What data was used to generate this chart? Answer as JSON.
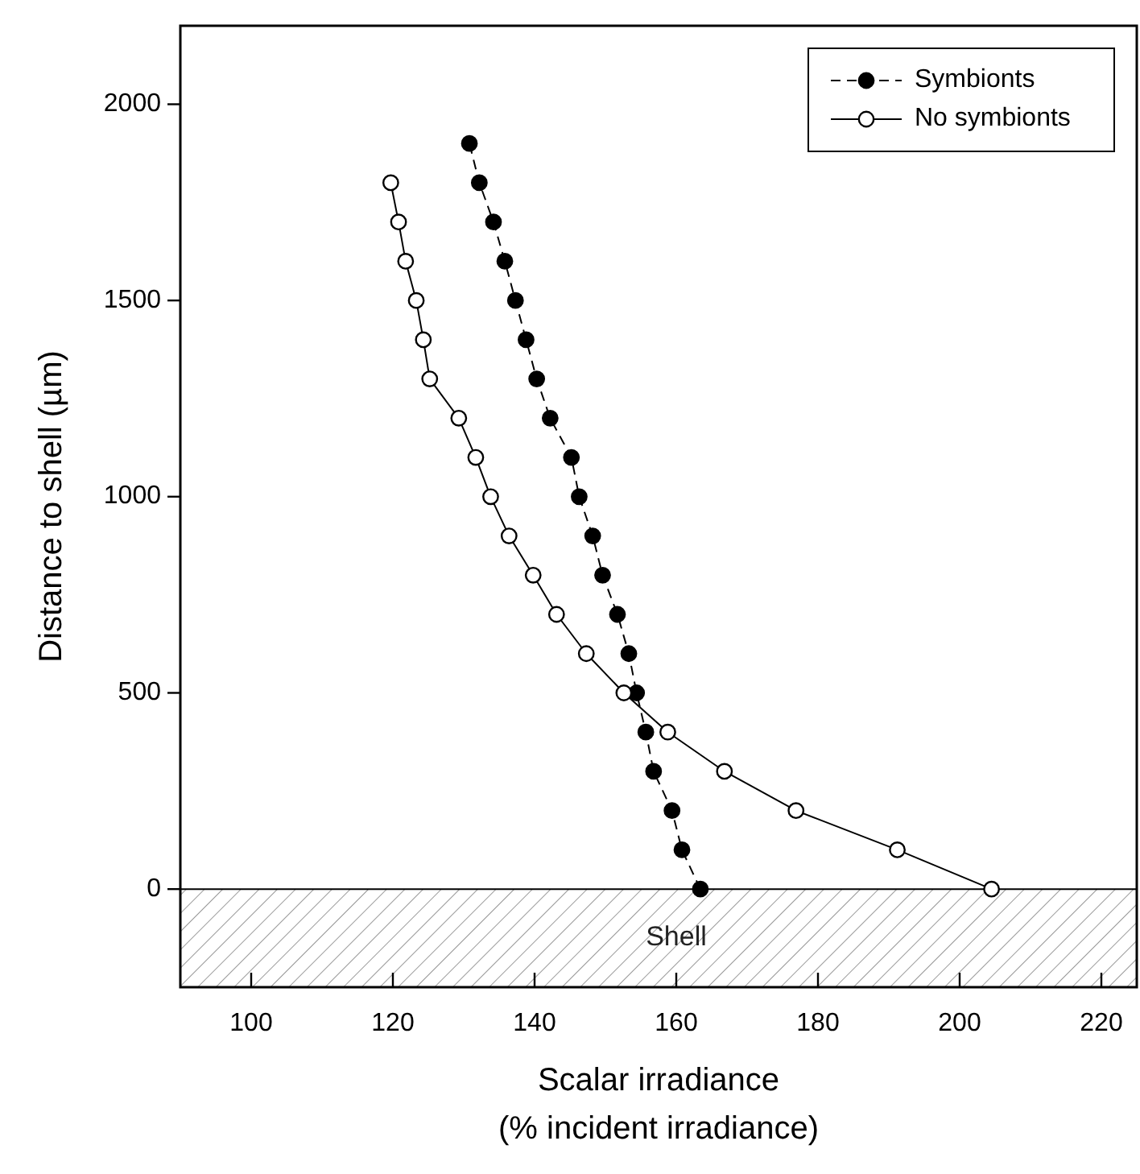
{
  "chart_data": {
    "type": "line",
    "xlabel": "Scalar irradiance\n(% incident irradiance)",
    "ylabel": "Distance to shell (µm)",
    "xlim": [
      90,
      225
    ],
    "xticks": [
      100,
      120,
      140,
      160,
      180,
      200,
      220
    ],
    "ylim": [
      -250,
      2200
    ],
    "yticks": [
      0,
      500,
      1000,
      1500,
      2000
    ],
    "grid": false,
    "legend": "top right",
    "marker": "circle",
    "ref_lines": [
      {
        "axis": "y",
        "value": 0,
        "color": "#000000"
      }
    ],
    "bands": [
      {
        "axis": "y",
        "from": -250,
        "to": 0,
        "label": "Shell",
        "color": "#999999"
      }
    ],
    "series": [
      {
        "name": "Symbionts",
        "color": "#000000",
        "line_style": "dashed",
        "x": [
          163.4,
          160.8,
          159.4,
          156.8,
          155.7,
          154.4,
          153.3,
          151.7,
          149.6,
          148.2,
          146.3,
          145.2,
          142.2,
          140.3,
          138.8,
          137.3,
          135.8,
          134.2,
          132.2,
          130.8
        ],
        "values": [
          0,
          100,
          200,
          300,
          400,
          500,
          600,
          700,
          800,
          900,
          1000,
          1100,
          1200,
          1300,
          1400,
          1500,
          1600,
          1700,
          1800,
          1900
        ]
      },
      {
        "name": "No symbionts",
        "color": "#ffffff",
        "line_style": "solid",
        "x": [
          204.5,
          191.2,
          176.9,
          166.8,
          158.8,
          152.6,
          147.3,
          143.1,
          139.8,
          136.4,
          133.8,
          131.7,
          129.3,
          125.2,
          124.3,
          123.3,
          121.8,
          120.8,
          119.7
        ],
        "values": [
          0,
          100,
          200,
          300,
          400,
          500,
          600,
          700,
          800,
          900,
          1000,
          1100,
          1200,
          1300,
          1400,
          1500,
          1600,
          1700,
          1800
        ]
      }
    ]
  }
}
